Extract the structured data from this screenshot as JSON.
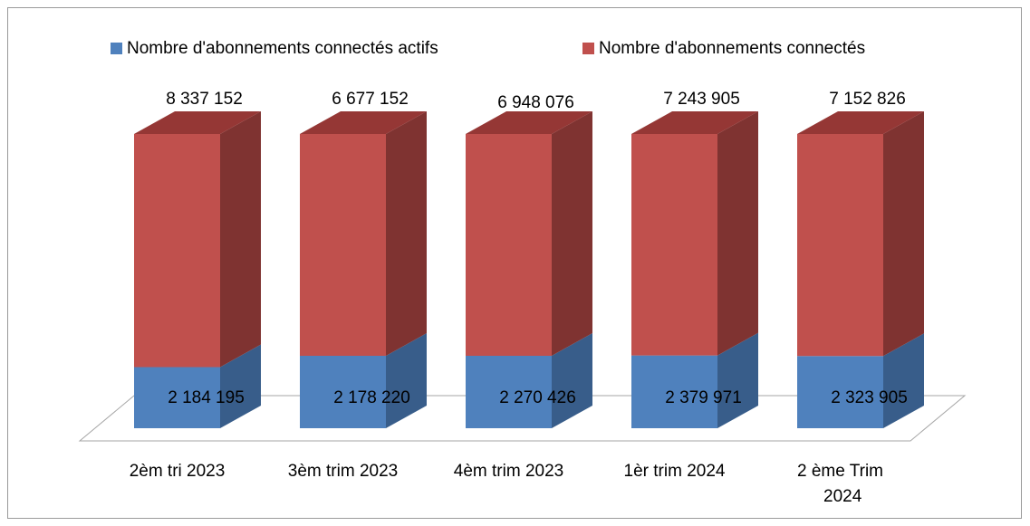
{
  "chart_data": {
    "type": "bar",
    "stacked": "percent",
    "view": "3d",
    "categories": [
      "2èm tri 2023",
      "3èm trim 2023",
      "4èm trim 2023",
      "1èr trim 2024",
      "2 ème Trim 2024"
    ],
    "series": [
      {
        "name": "Nombre d'abonnements connectés actifs",
        "color": "#4f81bd",
        "side_color": "#385d8a",
        "values": [
          2184195,
          2178220,
          2270426,
          2379971,
          2323905
        ],
        "value_labels": [
          "2 184 195",
          "2 178 220",
          "2 270 426",
          "2 379 971",
          "2 323 905"
        ]
      },
      {
        "name": "Nombre d'abonnements connectés",
        "color": "#c0504d",
        "side_color": "#7f3331",
        "top_color": "#953735",
        "values": [
          8337152,
          6677152,
          6948076,
          7243905,
          7152826
        ],
        "value_labels": [
          "8 337 152",
          "6 677 152",
          "6 948 076",
          "7 243 905",
          "7 152 826"
        ]
      }
    ],
    "legend": "top"
  }
}
